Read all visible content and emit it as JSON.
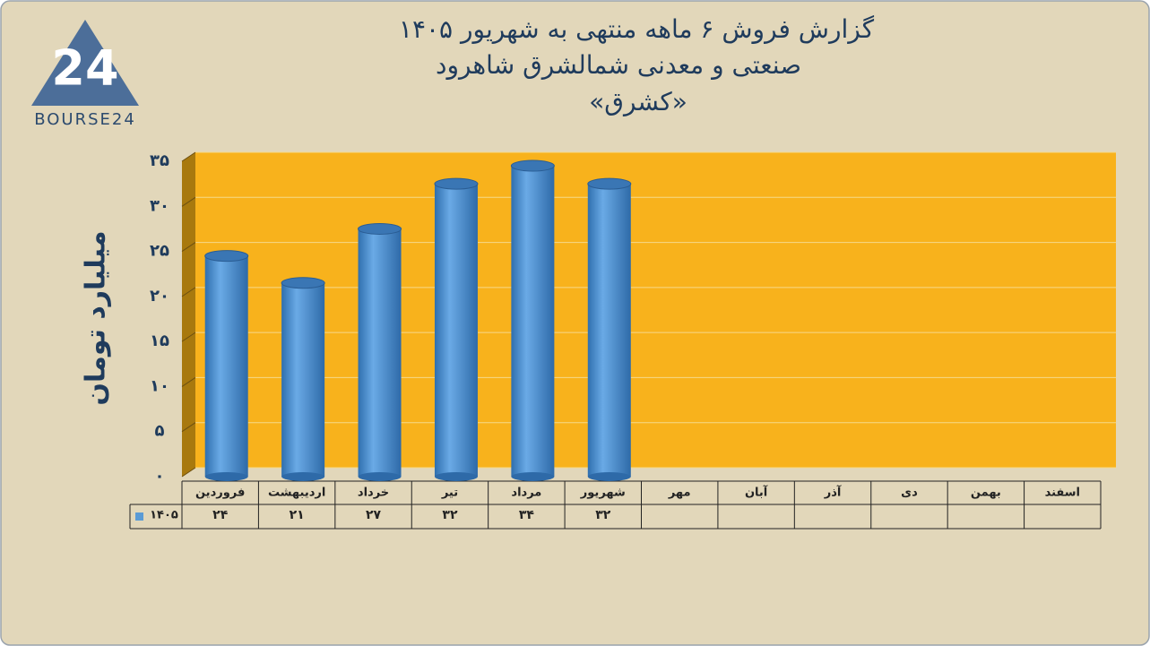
{
  "logo": {
    "mark": "24",
    "name": "BOURSE24"
  },
  "chart_data": {
    "type": "bar",
    "title": [
      "گزارش  فروش ۶ ماهه منتهی به شهریور ۱۴۰۵",
      "صنعتی و معدنی شمالشرق شاهرود",
      "«کشرق»"
    ],
    "y_label": "میلیارد تومان",
    "categories": [
      "فروردین",
      "اردیبهشت",
      "خرداد",
      "تیر",
      "مرداد",
      "شهریور",
      "مهر",
      "آبان",
      "آذر",
      "دی",
      "بهمن",
      "اسفند"
    ],
    "series": [
      {
        "name": "۱۴۰۵",
        "color": "#5b9bd5",
        "values": [
          24,
          21,
          27,
          32,
          34,
          32,
          null,
          null,
          null,
          null,
          null,
          null
        ],
        "value_labels": [
          "۲۴",
          "۲۱",
          "۲۷",
          "۳۲",
          "۳۴",
          "۳۲",
          null,
          null,
          null,
          null,
          null,
          null
        ]
      }
    ],
    "ylim": [
      0,
      35
    ],
    "yticks": [
      {
        "value": 0,
        "label": "۰"
      },
      {
        "value": 5,
        "label": "۵"
      },
      {
        "value": 10,
        "label": "۱۰"
      },
      {
        "value": 15,
        "label": "۱۵"
      },
      {
        "value": 20,
        "label": "۲۰"
      },
      {
        "value": 25,
        "label": "۲۵"
      },
      {
        "value": 30,
        "label": "۳۰"
      },
      {
        "value": 35,
        "label": "۳۵"
      }
    ],
    "grid": true,
    "plot_color": "#f8b21c",
    "background": "#e2d7ba"
  }
}
